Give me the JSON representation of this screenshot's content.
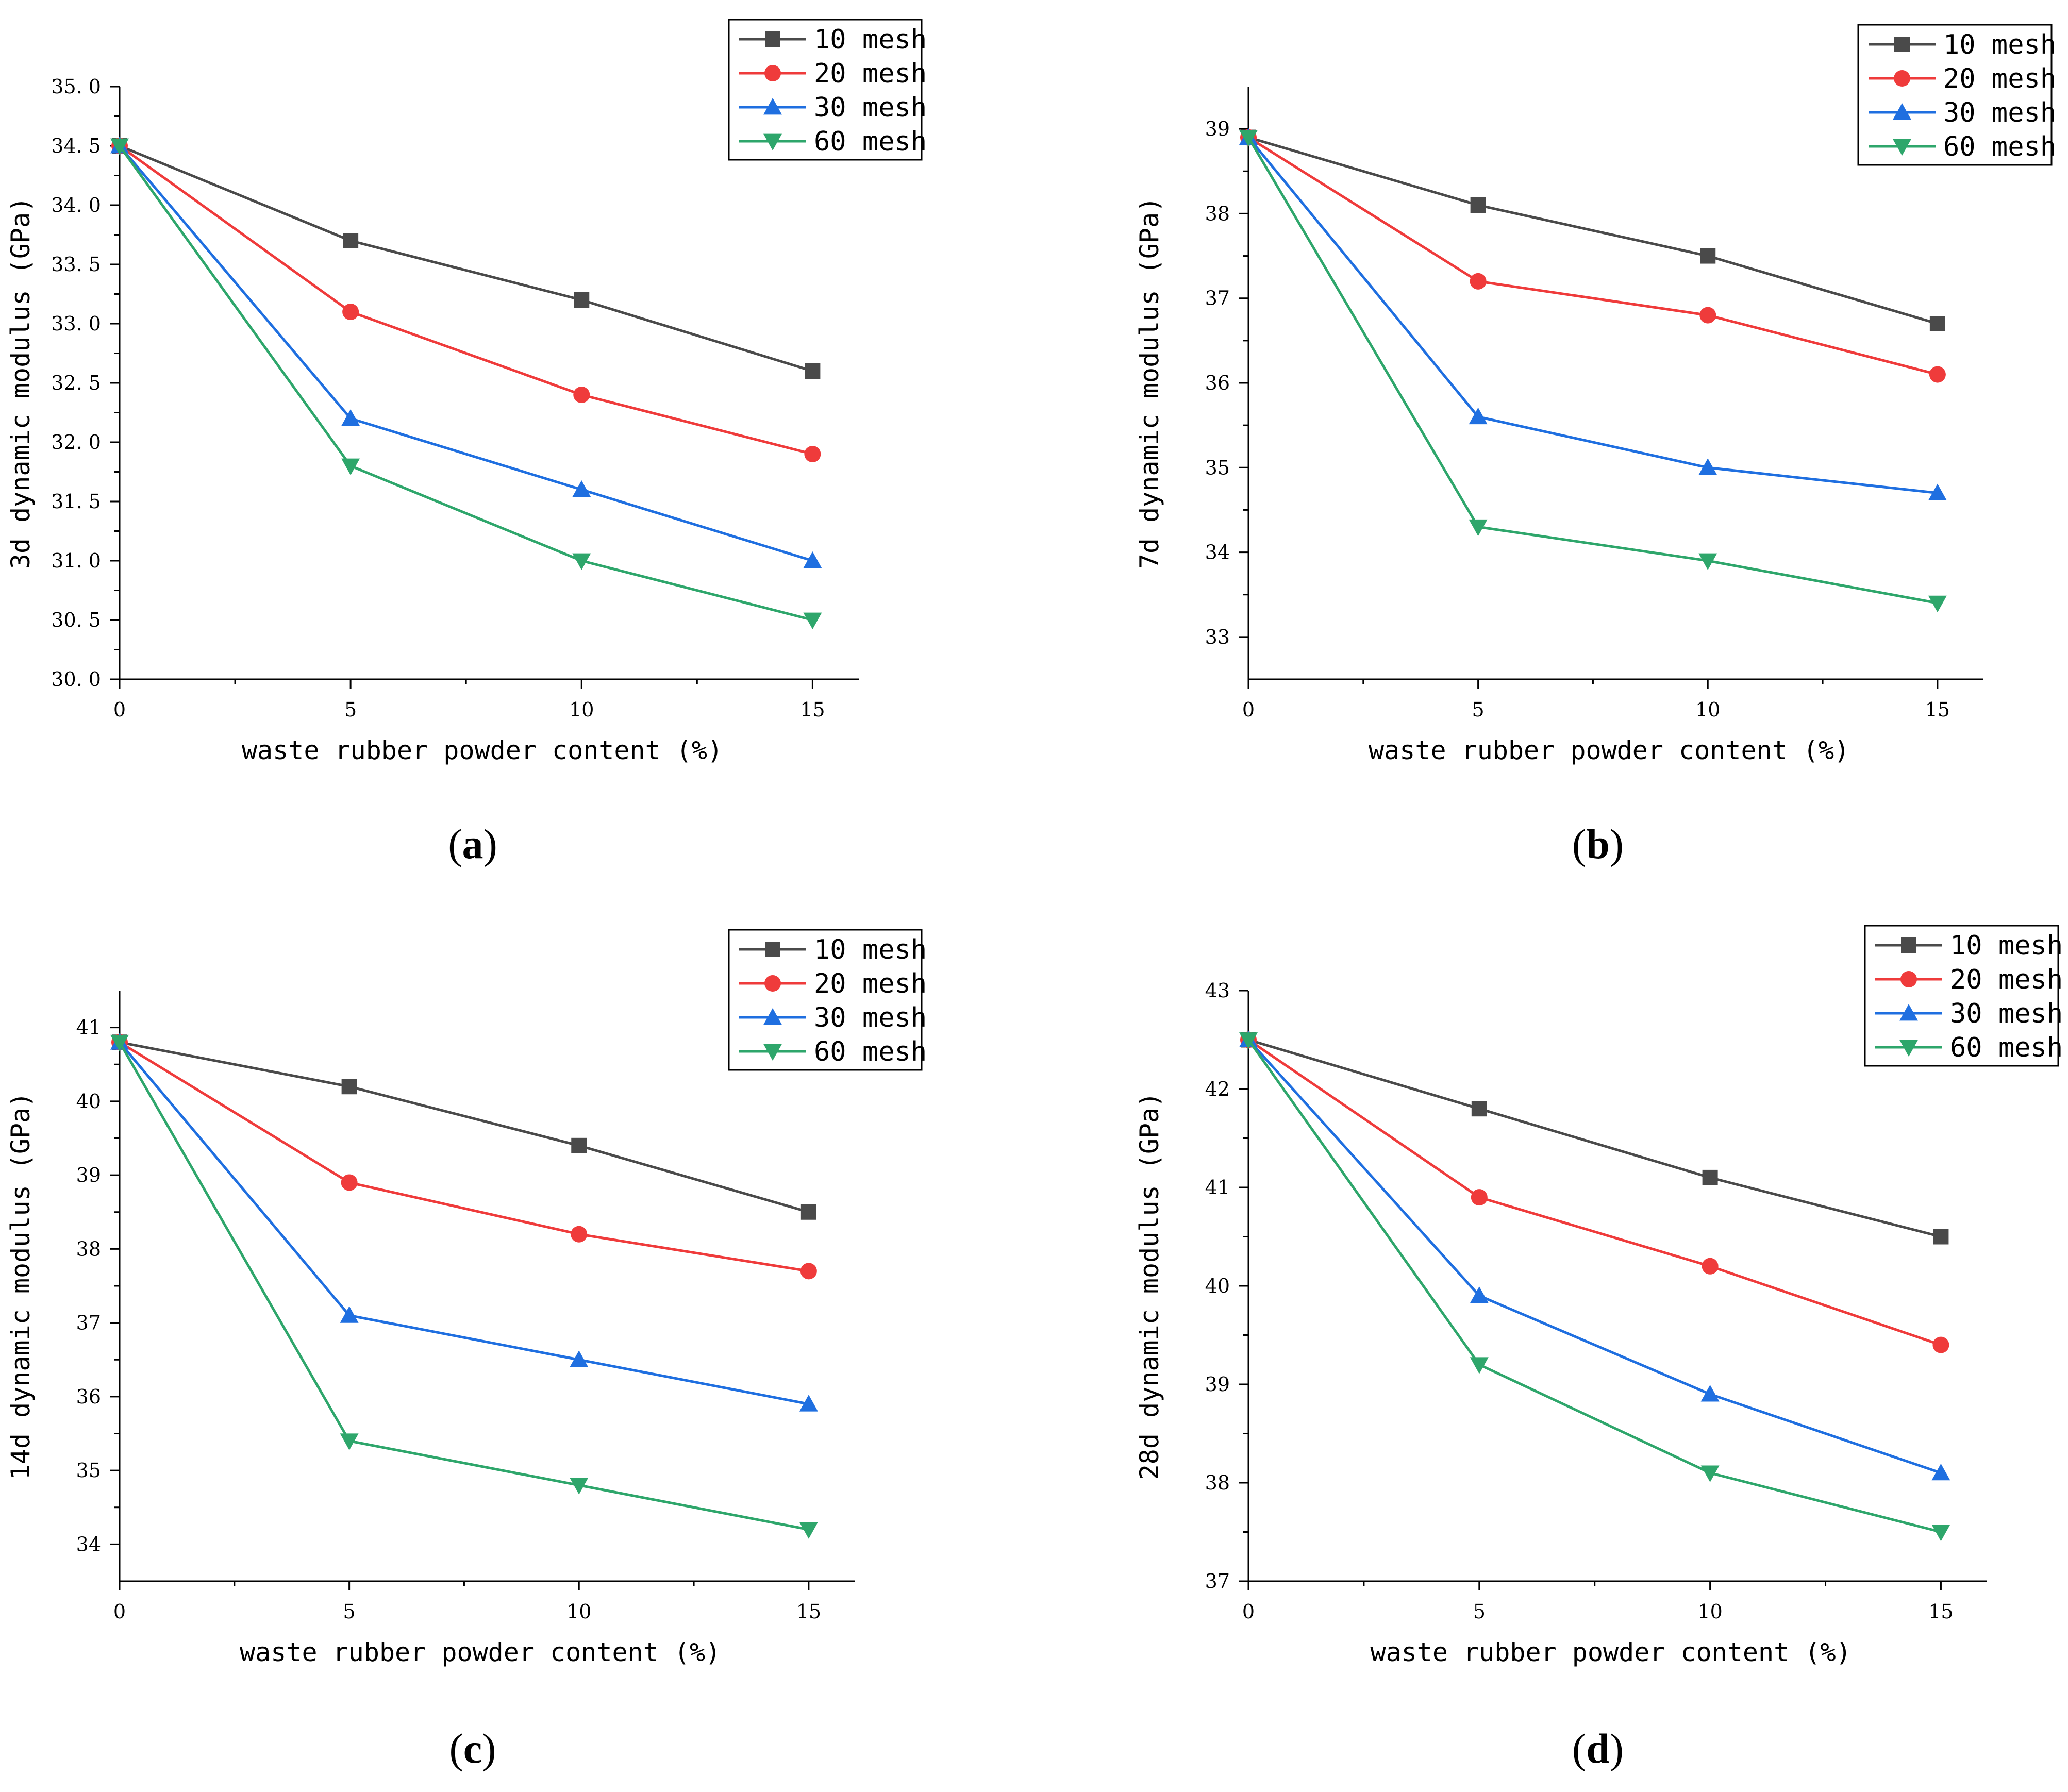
{
  "chart_data": [
    {
      "type": "line",
      "panel": "a",
      "x": [
        0,
        5,
        10,
        15
      ],
      "xlabel": "waste rubber powder content (%)",
      "ylabel": "3d dynamic modulus (GPa)",
      "xlim": [
        0,
        16
      ],
      "ylim": [
        30.0,
        35.0
      ],
      "xticks": [
        "0",
        "5",
        "10",
        "15"
      ],
      "yticks": [
        "30. 0",
        "30. 5",
        "31. 0",
        "31. 5",
        "32. 0",
        "32. 5",
        "33. 0",
        "33. 5",
        "34. 0",
        "34. 5",
        "35. 0"
      ],
      "ytick_values": [
        30.0,
        30.5,
        31.0,
        31.5,
        32.0,
        32.5,
        33.0,
        33.5,
        34.0,
        34.5,
        35.0
      ],
      "legend_position": "top-right",
      "series": [
        {
          "name": "10 mesh",
          "values": [
            34.5,
            33.7,
            33.2,
            32.6
          ]
        },
        {
          "name": "20 mesh",
          "values": [
            34.5,
            33.1,
            32.4,
            31.9
          ]
        },
        {
          "name": "30 mesh",
          "values": [
            34.5,
            32.2,
            31.6,
            31.0
          ]
        },
        {
          "name": "60 mesh",
          "values": [
            34.5,
            31.8,
            31.0,
            30.5
          ]
        }
      ],
      "caption": {
        "open": "(",
        "letter": "a",
        "close": ")"
      }
    },
    {
      "type": "line",
      "panel": "b",
      "x": [
        0,
        5,
        10,
        15
      ],
      "xlabel": "waste rubber powder content (%)",
      "ylabel": "7d dynamic modulus (GPa)",
      "xlim": [
        0,
        16
      ],
      "ylim": [
        32.5,
        39.5
      ],
      "xticks": [
        "0",
        "5",
        "10",
        "15"
      ],
      "yticks": [
        "33",
        "34",
        "35",
        "36",
        "37",
        "38",
        "39"
      ],
      "ytick_values": [
        33,
        34,
        35,
        36,
        37,
        38,
        39
      ],
      "legend_position": "top-right",
      "series": [
        {
          "name": "10 mesh",
          "values": [
            38.9,
            38.1,
            37.5,
            36.7
          ]
        },
        {
          "name": "20 mesh",
          "values": [
            38.9,
            37.2,
            36.8,
            36.1
          ]
        },
        {
          "name": "30 mesh",
          "values": [
            38.9,
            35.6,
            35.0,
            34.7
          ]
        },
        {
          "name": "60 mesh",
          "values": [
            38.9,
            34.3,
            33.9,
            33.4
          ]
        }
      ],
      "caption": {
        "open": "(",
        "letter": "b",
        "close": ")"
      }
    },
    {
      "type": "line",
      "panel": "c",
      "x": [
        0,
        5,
        10,
        15
      ],
      "xlabel": "waste rubber powder content (%)",
      "ylabel": "14d dynamic modulus (GPa)",
      "xlim": [
        0,
        16
      ],
      "ylim": [
        33.5,
        41.5
      ],
      "xticks": [
        "0",
        "5",
        "10",
        "15"
      ],
      "yticks": [
        "34",
        "35",
        "36",
        "37",
        "38",
        "39",
        "40",
        "41"
      ],
      "ytick_values": [
        34,
        35,
        36,
        37,
        38,
        39,
        40,
        41
      ],
      "legend_position": "top-right",
      "series": [
        {
          "name": "10 mesh",
          "values": [
            40.8,
            40.2,
            39.4,
            38.5
          ]
        },
        {
          "name": "20 mesh",
          "values": [
            40.8,
            38.9,
            38.2,
            37.7
          ]
        },
        {
          "name": "30 mesh",
          "values": [
            40.8,
            37.1,
            36.5,
            35.9
          ]
        },
        {
          "name": "60 mesh",
          "values": [
            40.8,
            35.4,
            34.8,
            34.2
          ]
        }
      ],
      "caption": {
        "open": "(",
        "letter": "c",
        "close": ")"
      }
    },
    {
      "type": "line",
      "panel": "d",
      "x": [
        0,
        5,
        10,
        15
      ],
      "xlabel": "waste rubber powder content (%)",
      "ylabel": "28d dynamic modulus (GPa)",
      "xlim": [
        0,
        16
      ],
      "ylim": [
        37,
        43
      ],
      "xticks": [
        "0",
        "5",
        "10",
        "15"
      ],
      "yticks": [
        "37",
        "38",
        "39",
        "40",
        "41",
        "42",
        "43"
      ],
      "ytick_values": [
        37,
        38,
        39,
        40,
        41,
        42,
        43
      ],
      "legend_position": "top-right",
      "series": [
        {
          "name": "10 mesh",
          "values": [
            42.5,
            41.8,
            41.1,
            40.5
          ]
        },
        {
          "name": "20 mesh",
          "values": [
            42.5,
            40.9,
            40.2,
            39.4
          ]
        },
        {
          "name": "30 mesh",
          "values": [
            42.5,
            39.9,
            38.9,
            38.1
          ]
        },
        {
          "name": "60 mesh",
          "values": [
            42.5,
            39.2,
            38.1,
            37.5
          ]
        }
      ],
      "caption": {
        "open": "(",
        "letter": "d",
        "close": ")"
      }
    }
  ],
  "series_style": [
    {
      "color": "#4a4a4a",
      "marker": "square"
    },
    {
      "color": "#ef3b3b",
      "marker": "circle"
    },
    {
      "color": "#1f6fe0",
      "marker": "triangle-up"
    },
    {
      "color": "#2ea66b",
      "marker": "triangle-down"
    }
  ]
}
